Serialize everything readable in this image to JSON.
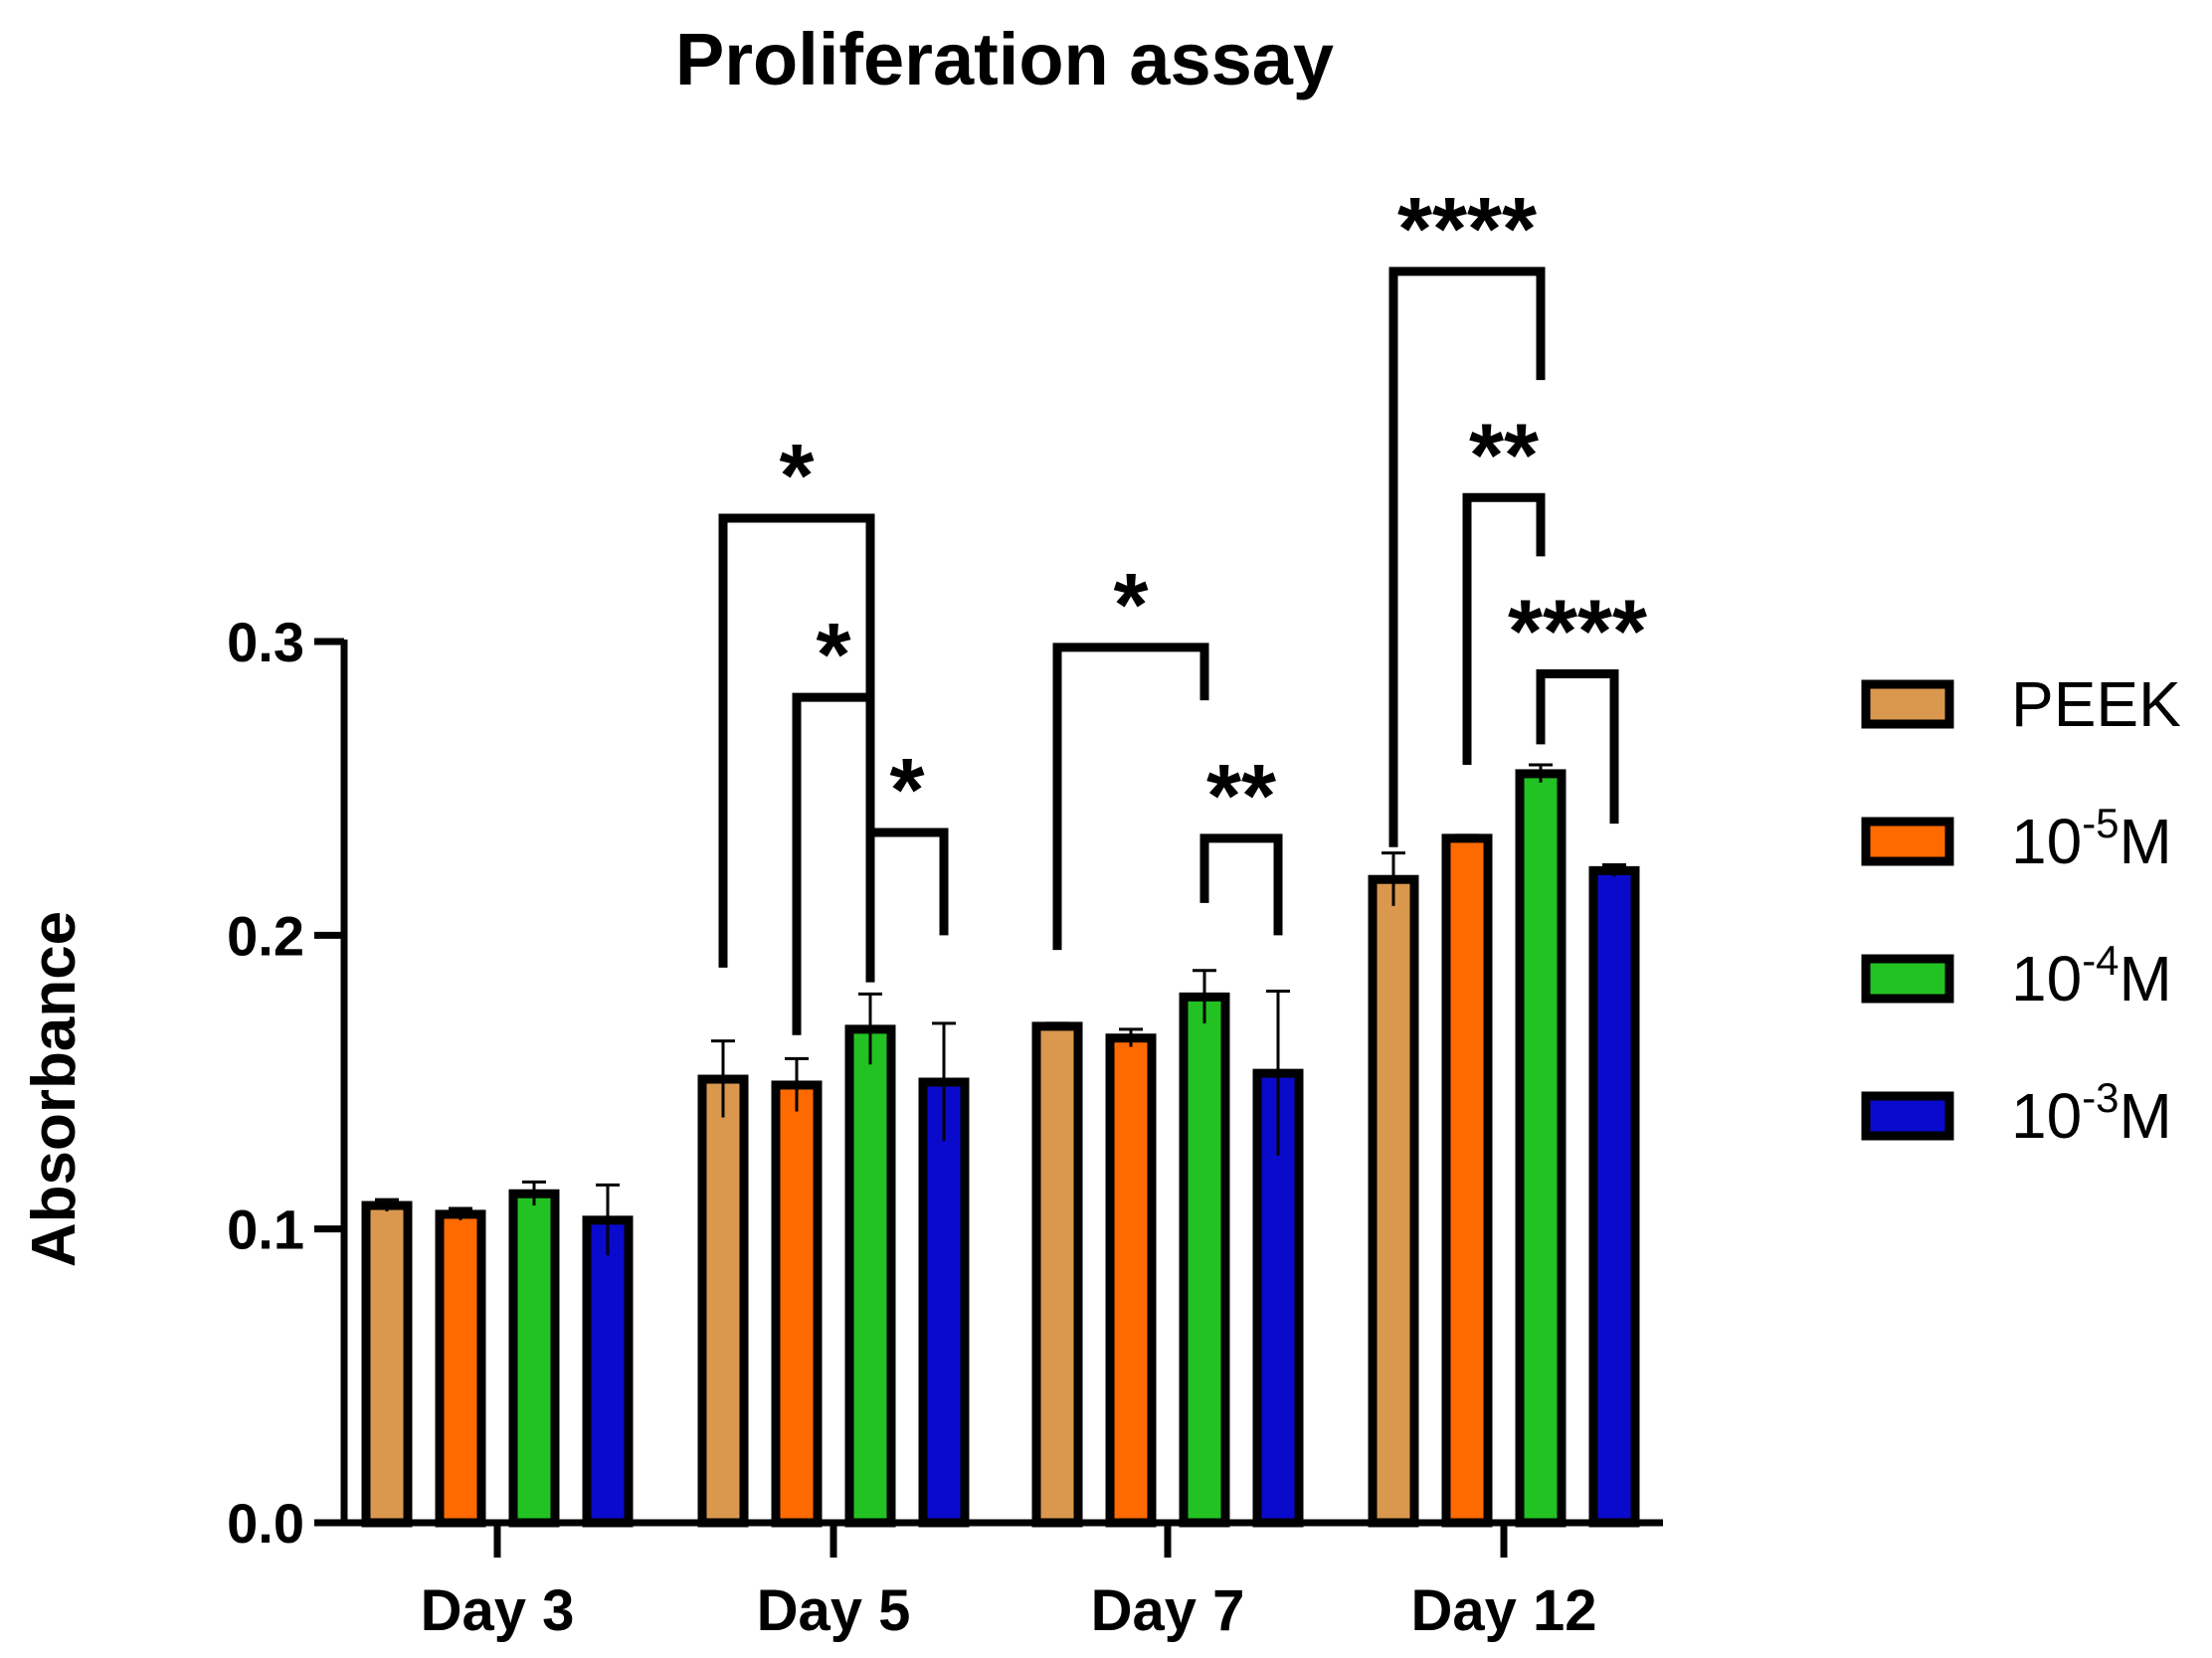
{
  "chart_data": {
    "type": "bar",
    "title": "Proliferation assay",
    "xlabel": "",
    "ylabel": "Absorbance",
    "ylim": [
      0,
      0.3
    ],
    "yticks": [
      "0.0",
      "0.1",
      "0.2",
      "0.3"
    ],
    "ytick_values": [
      0,
      0.1,
      0.2,
      0.3
    ],
    "categories": [
      "Day 3",
      "Day 5",
      "Day 7",
      "Day 12"
    ],
    "series": [
      {
        "name": "PEEK",
        "color": "#D9984E",
        "values": [
          0.108,
          0.151,
          0.169,
          0.219
        ],
        "errors": [
          0.002,
          0.013,
          0.001,
          0.009
        ]
      },
      {
        "name": "10-5M",
        "color": "#FF6A00",
        "values": [
          0.105,
          0.149,
          0.165,
          0.233
        ],
        "errors": [
          0.002,
          0.009,
          0.003,
          0.001
        ]
      },
      {
        "name": "10-4M",
        "color": "#22C222",
        "values": [
          0.112,
          0.168,
          0.179,
          0.255
        ],
        "errors": [
          0.004,
          0.012,
          0.009,
          0.003
        ]
      },
      {
        "name": "10-3M",
        "color": "#0A0ACD",
        "values": [
          0.103,
          0.15,
          0.153,
          0.222
        ],
        "errors": [
          0.012,
          0.02,
          0.028,
          0.002
        ]
      }
    ],
    "legend": [
      {
        "base": "PEEK",
        "sup": "",
        "suffix": ""
      },
      {
        "base": "10",
        "sup": "-5",
        "suffix": "M"
      },
      {
        "base": "10",
        "sup": "-4",
        "suffix": "M"
      },
      {
        "base": "10",
        "sup": "-3",
        "suffix": "M"
      }
    ],
    "legend_position": "right",
    "significance": [
      {
        "label": "*",
        "category": 1,
        "from": 0,
        "to": 2,
        "y_top": 0.342,
        "drop_left": 0.189,
        "drop_right": 0.184
      },
      {
        "label": "*",
        "category": 1,
        "from": 1,
        "to": 2,
        "y_top": 0.281,
        "drop_left": 0.166,
        "drop_right": 0.254
      },
      {
        "label": "*",
        "category": 1,
        "from": 2,
        "to": 3,
        "y_top": 0.235,
        "drop_left": 0.2,
        "drop_right": 0.2
      },
      {
        "label": "*",
        "category": 2,
        "from": 0,
        "to": 2,
        "y_top": 0.298,
        "drop_left": 0.195,
        "drop_right": 0.28
      },
      {
        "label": "**",
        "category": 2,
        "from": 2,
        "to": 3,
        "y_top": 0.233,
        "drop_left": 0.211,
        "drop_right": 0.2
      },
      {
        "label": "****",
        "category": 3,
        "from": 0,
        "to": 2,
        "y_top": 0.426,
        "drop_left": 0.23,
        "drop_right": 0.389
      },
      {
        "label": "**",
        "category": 3,
        "from": 1,
        "to": 2,
        "y_top": 0.349,
        "drop_left": 0.258,
        "drop_right": 0.329
      },
      {
        "label": "****",
        "category": 3,
        "from": 2,
        "to": 3,
        "y_top": 0.289,
        "drop_left": 0.265,
        "drop_right": 0.238
      }
    ]
  }
}
